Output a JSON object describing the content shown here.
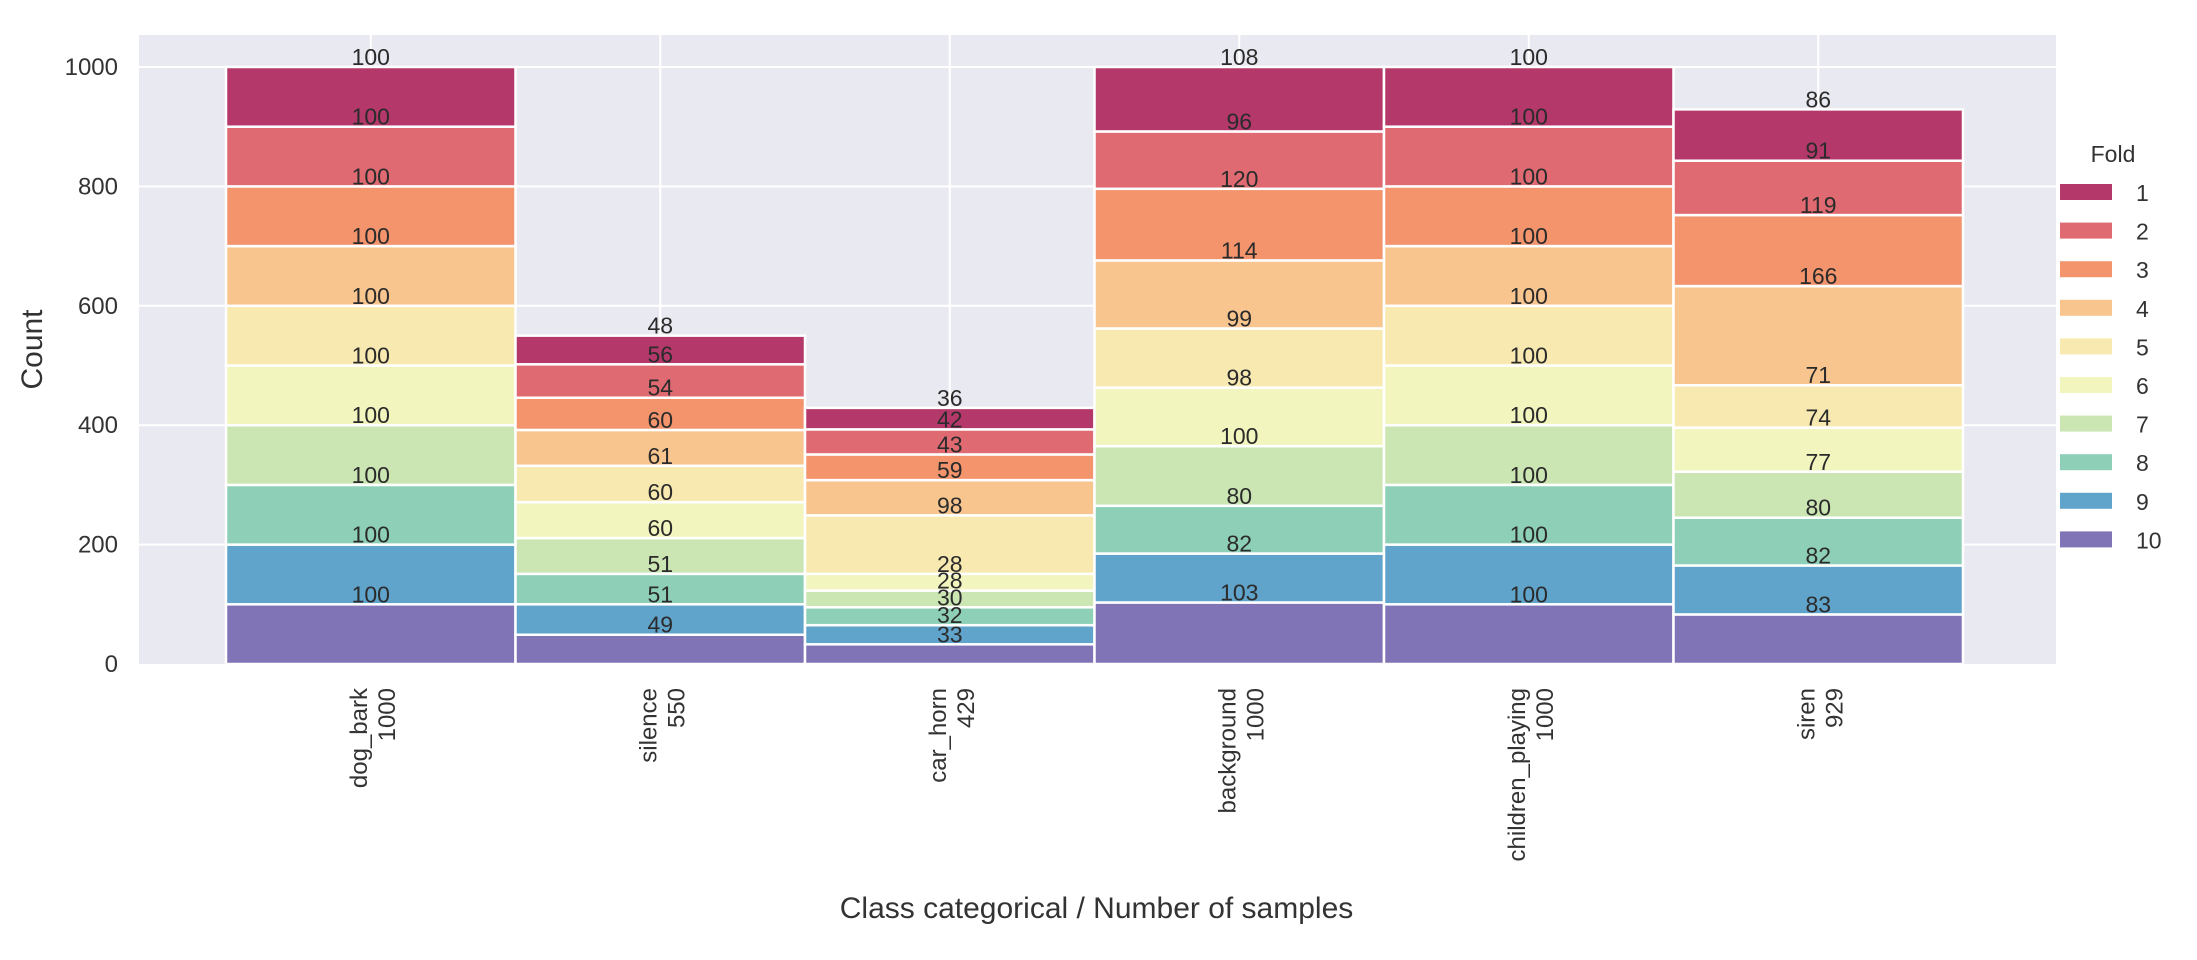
{
  "chart_data": {
    "type": "bar",
    "stacked": true,
    "title": "",
    "xlabel": "Class categorical / Number of samples",
    "ylabel": "Count",
    "ylim": [
      0,
      1050
    ],
    "yticks": [
      0,
      200,
      400,
      600,
      800,
      1000
    ],
    "grid": true,
    "categories": [
      "dog_bark",
      "silence",
      "car_horn",
      "background",
      "children_playing",
      "siren"
    ],
    "category_totals": [
      1000,
      550,
      429,
      1000,
      1000,
      929
    ],
    "legend": {
      "title": "Fold",
      "placement": "right"
    },
    "series": [
      {
        "name": "1",
        "color": "#b5386b",
        "values": [
          100,
          48,
          36,
          108,
          100,
          86
        ]
      },
      {
        "name": "2",
        "color": "#df6a72",
        "values": [
          100,
          56,
          42,
          96,
          100,
          91
        ]
      },
      {
        "name": "3",
        "color": "#f3946d",
        "values": [
          100,
          54,
          43,
          120,
          100,
          119
        ]
      },
      {
        "name": "4",
        "color": "#f8c58e",
        "values": [
          100,
          60,
          59,
          114,
          100,
          166
        ]
      },
      {
        "name": "5",
        "color": "#f8e9b0",
        "values": [
          100,
          61,
          98,
          99,
          100,
          71
        ]
      },
      {
        "name": "6",
        "color": "#f2f5bd",
        "values": [
          100,
          60,
          28,
          98,
          100,
          74
        ]
      },
      {
        "name": "7",
        "color": "#cbe6b3",
        "values": [
          100,
          60,
          28,
          100,
          100,
          77
        ]
      },
      {
        "name": "8",
        "color": "#8ed0b7",
        "values": [
          100,
          51,
          30,
          80,
          100,
          80
        ]
      },
      {
        "name": "9",
        "color": "#60a4cb",
        "values": [
          100,
          51,
          32,
          82,
          100,
          82
        ]
      },
      {
        "name": "10",
        "color": "#8074b6",
        "values": [
          100,
          49,
          33,
          103,
          100,
          83
        ]
      }
    ],
    "stack_order": "fold 10 at bottom, fold 1 at top",
    "colors": {
      "plot_background": "#e9e9f1",
      "grid": "#ffffff",
      "bar_edge": "#ffffff"
    }
  }
}
